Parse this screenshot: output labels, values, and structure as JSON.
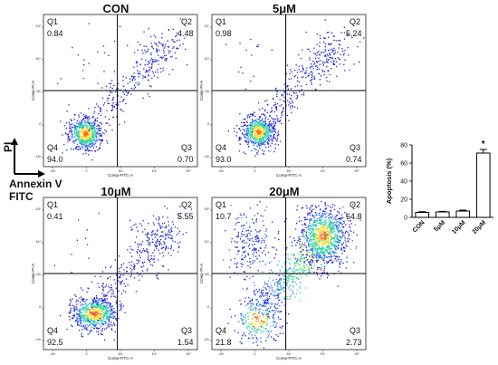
{
  "chart_data": [
    {
      "type": "scatter",
      "title": "CON",
      "xlabel": "Comp-FITC-A",
      "ylabel": "Comp-PI-A",
      "quadrants": {
        "Q1": "0.84",
        "Q2": "4.48",
        "Q3": "0.70",
        "Q4": "94.0"
      }
    },
    {
      "type": "scatter",
      "title": "5μM",
      "xlabel": "Comp-FITC-A",
      "ylabel": "Comp-PI-A",
      "quadrants": {
        "Q1": "0.98",
        "Q2": "5.24",
        "Q3": "0.74",
        "Q4": "93.0"
      }
    },
    {
      "type": "scatter",
      "title": "10μM",
      "xlabel": "Comp-FITC-A",
      "ylabel": "Comp-PI-A",
      "quadrants": {
        "Q1": "0.41",
        "Q2": "5.55",
        "Q3": "1.54",
        "Q4": "92.5"
      }
    },
    {
      "type": "scatter",
      "title": "20μM",
      "xlabel": "Comp-FITC-A",
      "ylabel": "Comp-PI-A",
      "quadrants": {
        "Q1": "10.7",
        "Q2": "64.8",
        "Q3": "2.73",
        "Q4": "21.8"
      }
    },
    {
      "type": "bar",
      "categories": [
        "CON",
        "5μM",
        "10μM",
        "20μM"
      ],
      "values": [
        5.5,
        6.0,
        7.0,
        71.0
      ],
      "errors": [
        0.8,
        0.6,
        1.0,
        4.0
      ],
      "significance": [
        "",
        "",
        "",
        "*"
      ],
      "ylabel": "Apoptosis (%)",
      "ylim": [
        0,
        80
      ],
      "yticks": [
        0,
        20,
        40,
        60,
        80
      ]
    }
  ],
  "axis_legend": {
    "y": "PI",
    "x": "Annexin V",
    "x2": "FITC"
  },
  "tick_labels": {
    "y": [
      "10⁵",
      "10⁴",
      "10³",
      "0",
      "-10³"
    ],
    "x": [
      "-10³",
      "0",
      "10³",
      "10⁴",
      "10⁵"
    ]
  },
  "colors": {
    "low": "#1f1fd0",
    "mid": "#2fd3a8",
    "high": "#ffe13a",
    "peak": "#ff6a1a",
    "gate": "#000000"
  }
}
